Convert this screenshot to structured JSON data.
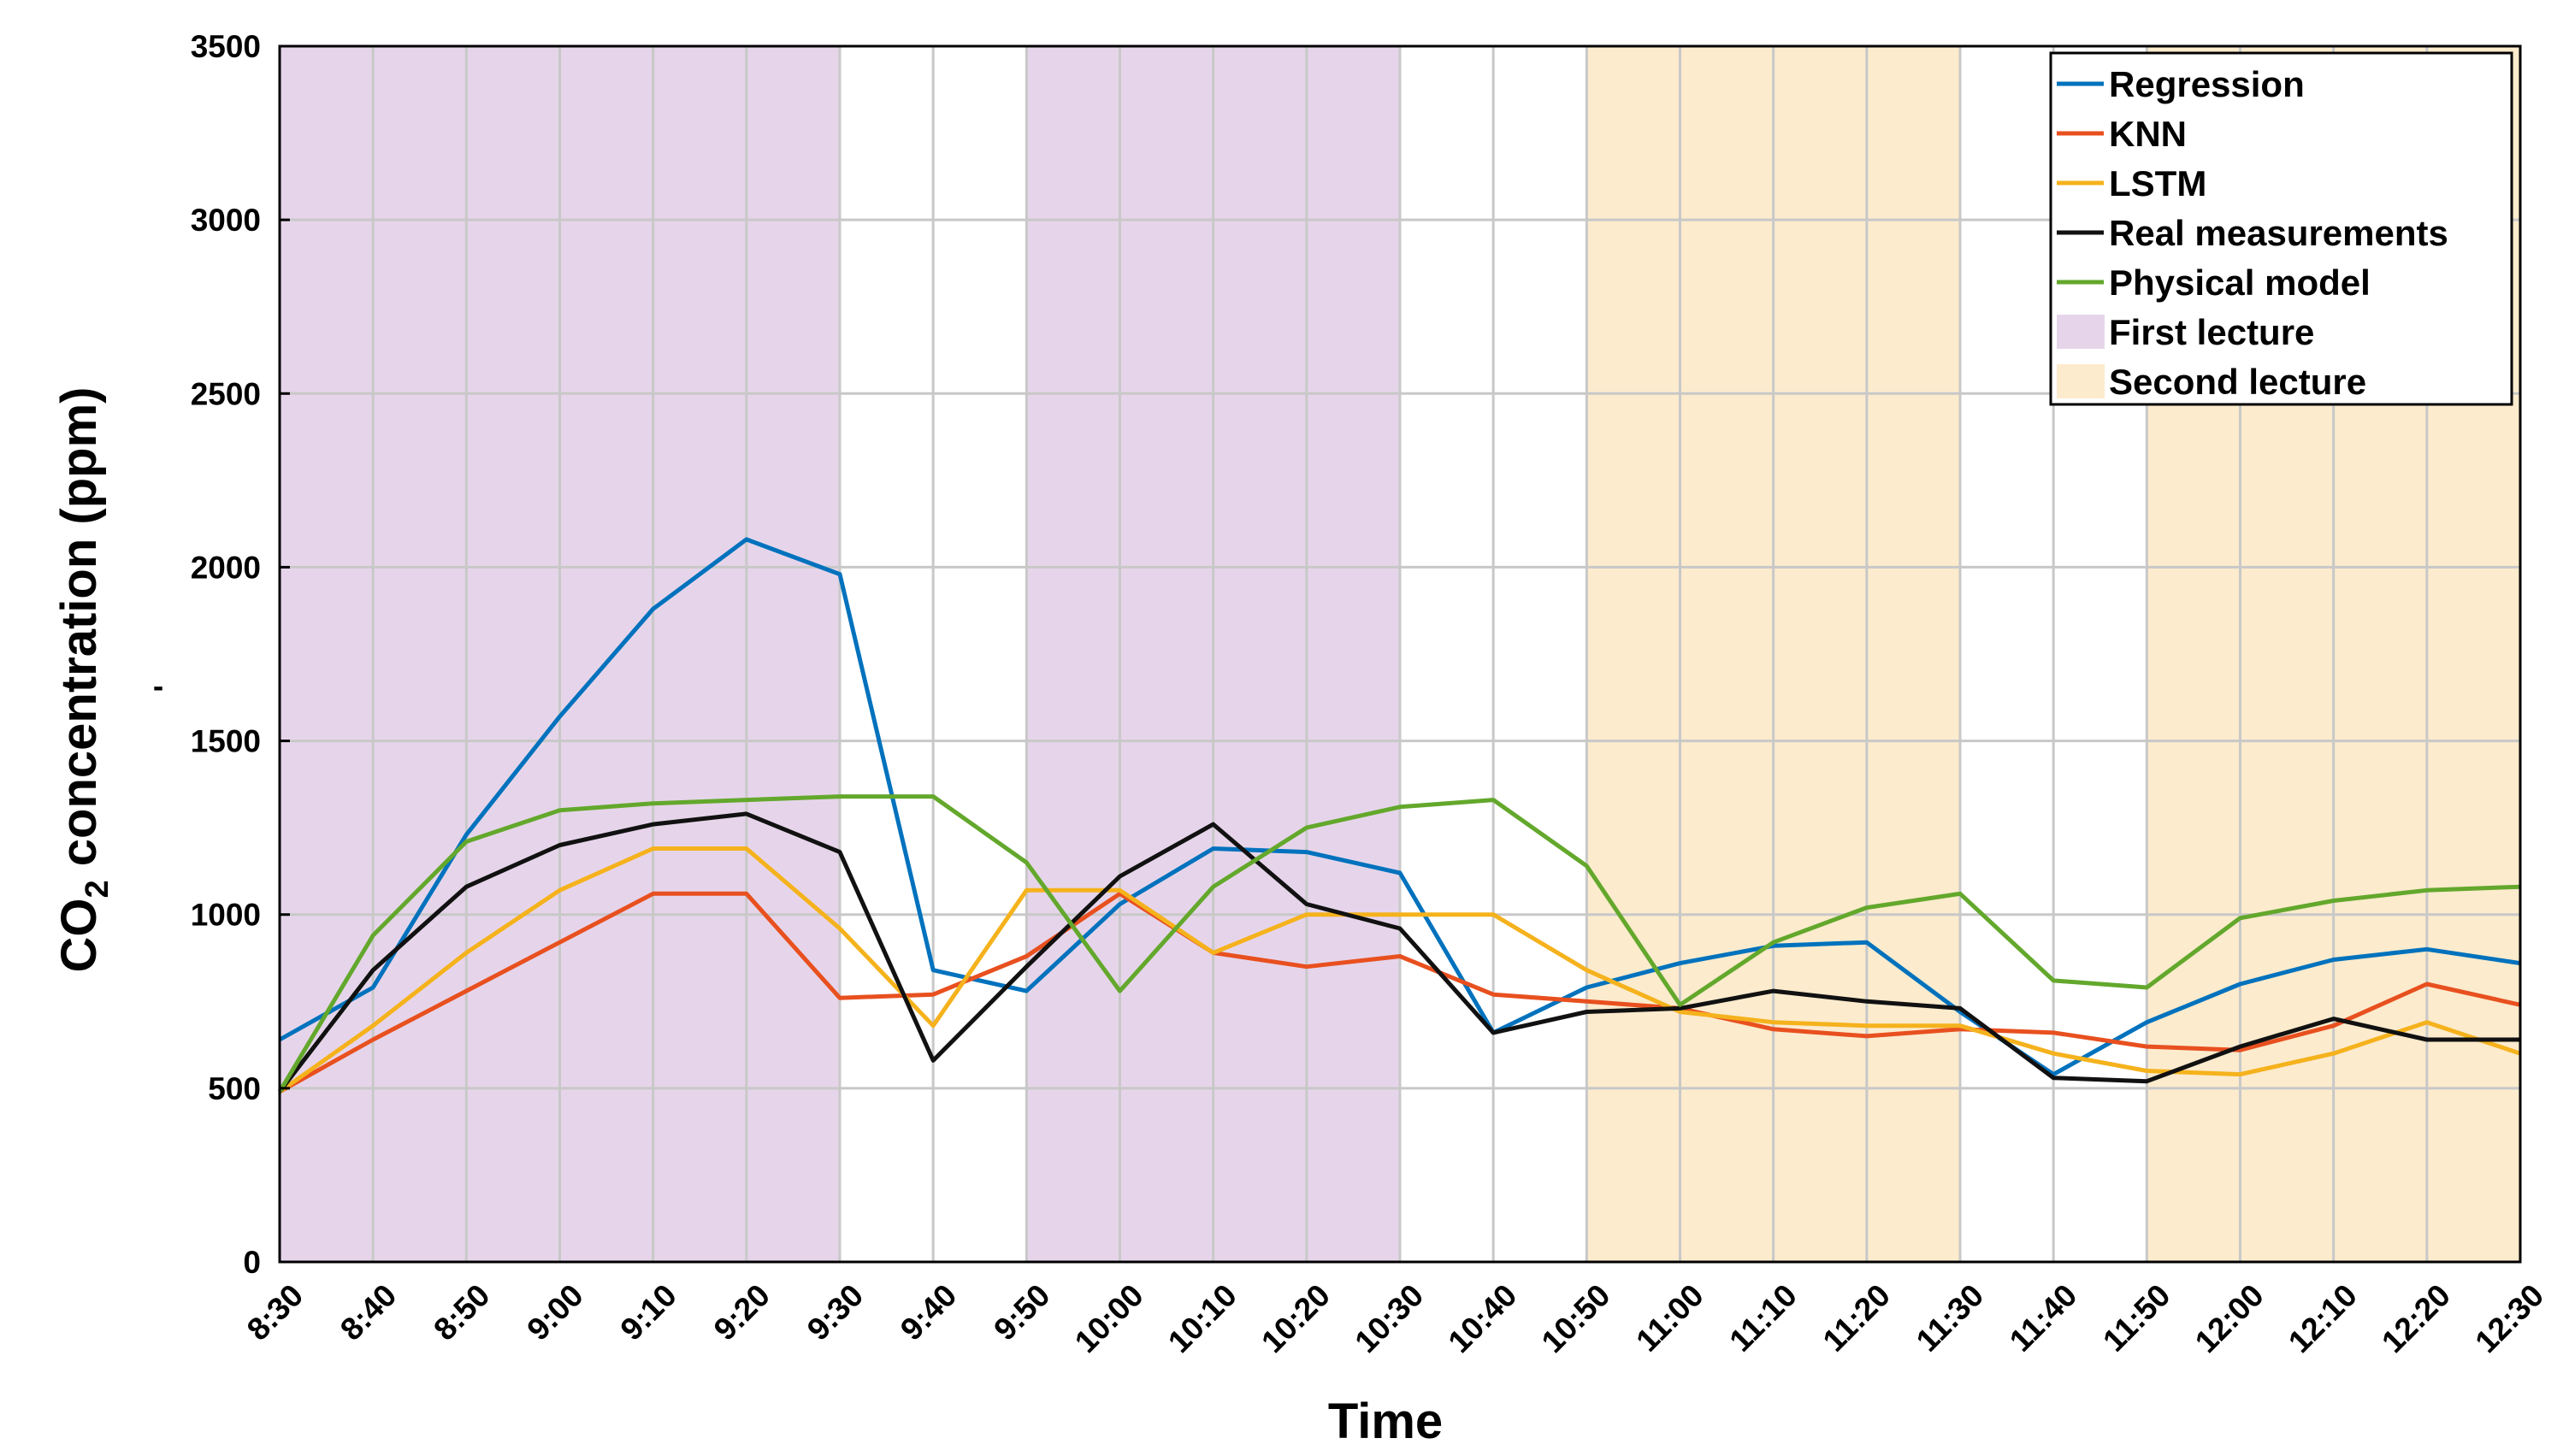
{
  "chart_data": {
    "type": "line",
    "title": "",
    "xlabel": "Time",
    "ylabel_prefix": "CO",
    "ylabel_sub": "2",
    "ylabel_suffix": " concentration (ppm)",
    "y_dash": "-",
    "ylim": [
      0,
      3500
    ],
    "yticks": [
      0,
      500,
      1000,
      1500,
      2000,
      2500,
      3000,
      3500
    ],
    "categories": [
      "8:30",
      "8:40",
      "8:50",
      "9:00",
      "9:10",
      "9:20",
      "9:30",
      "9:40",
      "9:50",
      "10:00",
      "10:10",
      "10:20",
      "10:30",
      "10:40",
      "10:50",
      "11:00",
      "11:10",
      "11:20",
      "11:30",
      "11:40",
      "11:50",
      "12:00",
      "12:10",
      "12:20",
      "12:30"
    ],
    "grid": true,
    "legend_position": "top-right",
    "bands": [
      {
        "name": "First lecture",
        "color": "#e6d5ea",
        "ranges": [
          [
            0,
            6
          ],
          [
            8,
            12
          ]
        ]
      },
      {
        "name": "Second lecture",
        "color": "#fcebcd",
        "ranges": [
          [
            14,
            18
          ],
          [
            20,
            24
          ]
        ]
      }
    ],
    "series": [
      {
        "name": "Regression",
        "color": "#0072bd",
        "values": [
          640,
          790,
          1230,
          1570,
          1880,
          2080,
          1980,
          840,
          780,
          1030,
          1190,
          1180,
          1120,
          660,
          790,
          860,
          910,
          920,
          720,
          540,
          690,
          800,
          870,
          900,
          860
        ]
      },
      {
        "name": "KNN",
        "color": "#e8501f",
        "values": [
          490,
          640,
          780,
          920,
          1060,
          1060,
          760,
          770,
          880,
          1060,
          890,
          850,
          880,
          770,
          750,
          730,
          670,
          650,
          670,
          660,
          620,
          610,
          680,
          800,
          740
        ]
      },
      {
        "name": "LSTM",
        "color": "#f5b21c",
        "values": [
          490,
          680,
          890,
          1070,
          1190,
          1190,
          960,
          680,
          1070,
          1070,
          890,
          1000,
          1000,
          1000,
          840,
          720,
          690,
          680,
          680,
          600,
          550,
          540,
          600,
          690,
          600
        ]
      },
      {
        "name": "Real measurements",
        "color": "#111111",
        "values": [
          490,
          840,
          1080,
          1200,
          1260,
          1290,
          1180,
          580,
          850,
          1110,
          1260,
          1030,
          960,
          660,
          720,
          730,
          780,
          750,
          730,
          530,
          520,
          620,
          700,
          640,
          640
        ]
      },
      {
        "name": "Physical model",
        "color": "#63a82c",
        "values": [
          490,
          940,
          1210,
          1300,
          1320,
          1330,
          1340,
          1340,
          1150,
          780,
          1080,
          1250,
          1310,
          1330,
          1140,
          740,
          920,
          1020,
          1060,
          810,
          790,
          990,
          1040,
          1070,
          1080
        ]
      }
    ]
  }
}
